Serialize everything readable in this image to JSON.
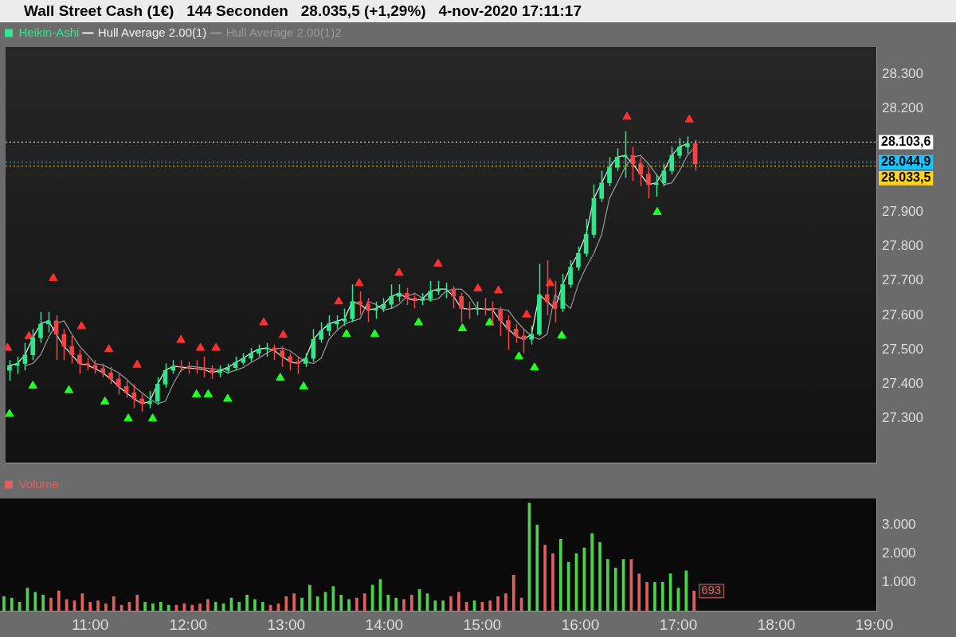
{
  "chart_data": [
    {
      "type": "candlestick",
      "title": "Wall Street Cash (1€)   144 Seconden   28.035,5 (+1,29%)   4-nov-2020 17:11:17",
      "legend": "top left",
      "tick_labels": "y",
      "x": [
        10.12,
        10.2,
        10.28,
        10.36,
        10.44,
        10.52,
        10.6,
        10.68,
        10.76,
        10.84,
        10.92,
        11,
        11.08,
        11.16,
        11.24,
        11.32,
        11.4,
        11.48,
        11.56,
        11.64,
        11.72,
        11.8,
        11.88,
        11.96,
        12.04,
        12.12,
        12.2,
        12.28,
        12.36,
        12.44,
        12.52,
        12.6,
        12.68,
        12.76,
        12.84,
        12.92,
        13,
        13.08,
        13.16,
        13.24,
        13.32,
        13.4,
        13.48,
        13.56,
        13.64,
        13.72,
        13.8,
        13.88,
        13.96,
        14.04,
        14.12,
        14.2,
        14.28,
        14.36,
        14.44,
        14.52,
        14.6,
        14.68,
        14.76,
        14.84,
        14.92,
        15,
        15.08,
        15.16,
        15.24,
        15.32,
        15.4,
        15.48,
        15.56,
        15.64,
        15.72,
        15.8,
        15.88,
        15.96,
        16.04,
        16.12,
        16.2,
        16.28,
        16.36,
        16.44,
        16.52,
        16.6,
        16.68,
        16.76,
        16.84,
        16.92,
        17,
        17.08,
        17.16
      ],
      "xlim": [
        10.08,
        19.02
      ],
      "ylim": [
        27170,
        28380
      ],
      "yticks": [
        {
          "value": 27300,
          "label": "27.300"
        },
        {
          "value": 27400,
          "label": "27.400"
        },
        {
          "value": 27500,
          "label": "27.500"
        },
        {
          "value": 27600,
          "label": "27.600"
        },
        {
          "value": 27700,
          "label": "27.700"
        },
        {
          "value": 27800,
          "label": "27.800"
        },
        {
          "value": 27900,
          "label": "27.900"
        },
        {
          "value": 28200,
          "label": "28.200"
        },
        {
          "value": 28300,
          "label": "28.300"
        }
      ],
      "ref_lines": [
        {
          "axis": "y",
          "value": 28103.6,
          "label": "28.103,6",
          "color": "#ffffff"
        },
        {
          "axis": "y",
          "value": 28044.9,
          "label": "28.044,9",
          "color": "#19c3ff"
        },
        {
          "axis": "y",
          "value": 28033.5,
          "label": "28.033,5",
          "color": "#ffd21e"
        }
      ],
      "series": [
        {
          "type": "candlestick",
          "name": "Heikin-Ashi",
          "color": "#2ee88a",
          "colors": [
            "#2ee88a",
            "#2ee88a",
            "#2ee88a",
            "#2ee88a",
            "#2ee88a",
            "#2ee88a",
            "#f04545",
            "#f04545",
            "#f04545",
            "#f04545",
            "#f04545",
            "#f04545",
            "#f04545",
            "#f04545",
            "#f04545",
            "#f04545",
            "#f04545",
            "#f04545",
            "#2ee88a",
            "#2ee88a",
            "#2ee88a",
            "#2ee88a",
            "#f04545",
            "#f04545",
            "#f04545",
            "#f04545",
            "#f04545",
            "#2ee88a",
            "#2ee88a",
            "#2ee88a",
            "#2ee88a",
            "#2ee88a",
            "#2ee88a",
            "#2ee88a",
            "#f04545",
            "#f04545",
            "#f04545",
            "#f04545",
            "#2ee88a",
            "#2ee88a",
            "#2ee88a",
            "#2ee88a",
            "#2ee88a",
            "#2ee88a",
            "#2ee88a",
            "#f04545",
            "#f04545",
            "#2ee88a",
            "#2ee88a",
            "#2ee88a",
            "#2ee88a",
            "#f04545",
            "#f04545",
            "#2ee88a",
            "#2ee88a",
            "#2ee88a",
            "#2ee88a",
            "#f04545",
            "#f04545",
            "#f04545",
            "#2ee88a",
            "#f04545",
            "#f04545",
            "#f04545",
            "#f04545",
            "#f04545",
            "#f04545",
            "#2ee88a",
            "#2ee88a",
            "#f04545",
            "#f04545",
            "#2ee88a",
            "#2ee88a",
            "#2ee88a",
            "#2ee88a",
            "#2ee88a",
            "#2ee88a",
            "#2ee88a",
            "#2ee88a",
            "#2ee88a",
            "#f04545",
            "#f04545",
            "#f04545",
            "#2ee88a",
            "#2ee88a",
            "#2ee88a",
            "#2ee88a",
            "#2ee88a",
            "#f04545"
          ],
          "ohlc": [
            [
              27440,
              27470,
              27410,
              27454
            ],
            [
              27454,
              27480,
              27430,
              27460
            ],
            [
              27460,
              27520,
              27440,
              27485
            ],
            [
              27485,
              27560,
              27470,
              27535
            ],
            [
              27535,
              27610,
              27520,
              27575
            ],
            [
              27575,
              27610,
              27550,
              27584
            ],
            [
              27584,
              27600,
              27470,
              27545
            ],
            [
              27545,
              27560,
              27470,
              27510
            ],
            [
              27510,
              27540,
              27460,
              27485
            ],
            [
              27485,
              27500,
              27430,
              27460
            ],
            [
              27460,
              27475,
              27440,
              27455
            ],
            [
              27455,
              27470,
              27430,
              27445
            ],
            [
              27445,
              27460,
              27420,
              27433
            ],
            [
              27433,
              27450,
              27400,
              27415
            ],
            [
              27415,
              27430,
              27370,
              27393
            ],
            [
              27393,
              27410,
              27360,
              27375
            ],
            [
              27375,
              27400,
              27330,
              27357
            ],
            [
              27357,
              27370,
              27320,
              27343
            ],
            [
              27343,
              27380,
              27330,
              27350
            ],
            [
              27350,
              27420,
              27340,
              27400
            ],
            [
              27400,
              27460,
              27390,
              27440
            ],
            [
              27440,
              27470,
              27430,
              27452
            ],
            [
              27452,
              27470,
              27435,
              27450
            ],
            [
              27450,
              27465,
              27430,
              27447
            ],
            [
              27447,
              27470,
              27430,
              27445
            ],
            [
              27445,
              27480,
              27420,
              27442
            ],
            [
              27442,
              27455,
              27415,
              27433
            ],
            [
              27433,
              27455,
              27420,
              27440
            ],
            [
              27440,
              27460,
              27430,
              27448
            ],
            [
              27448,
              27480,
              27440,
              27463
            ],
            [
              27463,
              27490,
              27455,
              27475
            ],
            [
              27475,
              27505,
              27465,
              27490
            ],
            [
              27490,
              27515,
              27480,
              27502
            ],
            [
              27502,
              27520,
              27480,
              27505
            ],
            [
              27505,
              27515,
              27470,
              27497
            ],
            [
              27497,
              27510,
              27450,
              27480
            ],
            [
              27480,
              27490,
              27440,
              27465
            ],
            [
              27465,
              27480,
              27430,
              27460
            ],
            [
              27460,
              27490,
              27450,
              27475
            ],
            [
              27475,
              27560,
              27465,
              27530
            ],
            [
              27530,
              27580,
              27520,
              27555
            ],
            [
              27555,
              27600,
              27540,
              27575
            ],
            [
              27575,
              27600,
              27560,
              27583
            ],
            [
              27583,
              27620,
              27570,
              27590
            ],
            [
              27590,
              27690,
              27580,
              27640
            ],
            [
              27640,
              27670,
              27600,
              27632
            ],
            [
              27632,
              27650,
              27580,
              27615
            ],
            [
              27615,
              27640,
              27590,
              27620
            ],
            [
              27620,
              27650,
              27610,
              27632
            ],
            [
              27632,
              27690,
              27620,
              27655
            ],
            [
              27655,
              27690,
              27640,
              27664
            ],
            [
              27664,
              27680,
              27630,
              27650
            ],
            [
              27650,
              27660,
              27620,
              27643
            ],
            [
              27643,
              27665,
              27630,
              27648
            ],
            [
              27648,
              27700,
              27640,
              27670
            ],
            [
              27670,
              27700,
              27660,
              27676
            ],
            [
              27676,
              27695,
              27650,
              27676
            ],
            [
              27676,
              27685,
              27620,
              27655
            ],
            [
              27655,
              27665,
              27580,
              27620
            ],
            [
              27620,
              27640,
              27590,
              27618
            ],
            [
              27618,
              27640,
              27600,
              27620
            ],
            [
              27620,
              27650,
              27600,
              27618
            ],
            [
              27618,
              27640,
              27570,
              27615
            ],
            [
              27615,
              27625,
              27540,
              27585
            ],
            [
              27585,
              27600,
              27500,
              27560
            ],
            [
              27560,
              27575,
              27520,
              27540
            ],
            [
              27540,
              27560,
              27490,
              27530
            ],
            [
              27530,
              27570,
              27515,
              27545
            ],
            [
              27545,
              27750,
              27540,
              27660
            ],
            [
              27660,
              27760,
              27600,
              27640
            ],
            [
              27640,
              27700,
              27580,
              27620
            ],
            [
              27620,
              27720,
              27610,
              27690
            ],
            [
              27690,
              27760,
              27680,
              27740
            ],
            [
              27740,
              27800,
              27730,
              27780
            ],
            [
              27780,
              27880,
              27770,
              27835
            ],
            [
              27835,
              27980,
              27825,
              27940
            ],
            [
              27940,
              28020,
              27930,
              27985
            ],
            [
              27985,
              28060,
              27975,
              28030
            ],
            [
              28030,
              28085,
              28020,
              28060
            ],
            [
              28060,
              28135,
              28000,
              28065
            ],
            [
              28065,
              28090,
              27990,
              28040
            ],
            [
              28040,
              28060,
              27975,
              28010
            ],
            [
              28010,
              28030,
              27940,
              27980
            ],
            [
              27980,
              28010,
              27945,
              27985
            ],
            [
              27985,
              28040,
              27975,
              28020
            ],
            [
              28020,
              28090,
              28010,
              28065
            ],
            [
              28065,
              28115,
              28055,
              28090
            ],
            [
              28090,
              28120,
              28070,
              28099
            ],
            [
              28099,
              28110,
              28020,
              28040
            ]
          ]
        },
        {
          "type": "line",
          "name": "Hull Average 2.00(1)",
          "color": "#f0f0f0",
          "marker": "none",
          "values": [
            27454,
            27460,
            27485,
            27535,
            27575,
            27584,
            27545,
            27510,
            27485,
            27460,
            27455,
            27445,
            27433,
            27415,
            27393,
            27375,
            27357,
            27343,
            27350,
            27400,
            27440,
            27452,
            27450,
            27447,
            27445,
            27442,
            27433,
            27440,
            27448,
            27463,
            27475,
            27490,
            27502,
            27505,
            27497,
            27480,
            27465,
            27460,
            27475,
            27530,
            27555,
            27575,
            27583,
            27590,
            27640,
            27632,
            27615,
            27620,
            27632,
            27655,
            27664,
            27650,
            27643,
            27648,
            27670,
            27676,
            27676,
            27655,
            27620,
            27618,
            27620,
            27618,
            27615,
            27585,
            27560,
            27540,
            27530,
            27545,
            27660,
            27640,
            27620,
            27690,
            27740,
            27780,
            27835,
            27940,
            27985,
            28030,
            28060,
            28065,
            28040,
            28010,
            27980,
            27985,
            28020,
            28065,
            28090,
            28099,
            null
          ]
        },
        {
          "type": "line",
          "name": "Hull Average 2.00(1)2",
          "color": "#9a9a9a",
          "marker": "none",
          "values": [
            null,
            null,
            27454,
            27460,
            27485,
            27535,
            27575,
            27584,
            27545,
            27510,
            27485,
            27460,
            27455,
            27445,
            27433,
            27415,
            27393,
            27375,
            27357,
            27343,
            27350,
            27400,
            27440,
            27452,
            27450,
            27447,
            27445,
            27442,
            27433,
            27440,
            27448,
            27463,
            27475,
            27490,
            27502,
            27505,
            27497,
            27480,
            27465,
            27460,
            27475,
            27530,
            27555,
            27575,
            27583,
            27590,
            27640,
            27632,
            27615,
            27620,
            27632,
            27655,
            27664,
            27650,
            27643,
            27648,
            27670,
            27676,
            27676,
            27655,
            27620,
            27618,
            27620,
            27618,
            27615,
            27585,
            27560,
            27540,
            27530,
            27545,
            27660,
            27640,
            27620,
            27690,
            27740,
            27780,
            27835,
            27940,
            27985,
            28030,
            28060,
            28065,
            28040,
            28010,
            27980,
            27985,
            28020,
            28065,
            28090
          ]
        },
        {
          "type": "scatter",
          "color": "#22ff22",
          "marker": "triangle",
          "x": [
            10.12,
            10.36,
            10.73,
            11.1,
            11.34,
            11.59,
            12.04,
            12.16,
            12.36,
            12.9,
            13.14,
            13.58,
            13.87,
            14.32,
            14.77,
            15.05,
            15.35,
            15.51,
            15.79,
            16.77
          ],
          "values": [
            27313,
            27395,
            27382,
            27349,
            27300,
            27300,
            27370,
            27370,
            27357,
            27418,
            27393,
            27545,
            27545,
            27579,
            27562,
            27579,
            27480,
            27448,
            27541,
            27900
          ]
        },
        {
          "type": "scatter",
          "color": "#ff3030",
          "marker": "triangle",
          "x": [
            10.1,
            10.32,
            10.57,
            10.86,
            11.14,
            11.43,
            11.88,
            12.08,
            12.24,
            12.73,
            12.93,
            13.5,
            13.71,
            14.12,
            14.52,
            14.93,
            15.14,
            15.43,
            15.67,
            16.46,
            17.1
          ],
          "values": [
            27505,
            27539,
            27708,
            27568,
            27501,
            27456,
            27528,
            27505,
            27505,
            27579,
            27543,
            27640,
            27693,
            27723,
            27750,
            27678,
            27672,
            27602,
            27693,
            28177,
            28169
          ]
        }
      ]
    },
    {
      "type": "bar",
      "legend": "top left",
      "x": [
        10.12,
        10.2,
        10.28,
        10.36,
        10.44,
        10.52,
        10.6,
        10.68,
        10.76,
        10.84,
        10.92,
        11,
        11.08,
        11.16,
        11.24,
        11.32,
        11.4,
        11.48,
        11.56,
        11.64,
        11.72,
        11.8,
        11.88,
        11.96,
        12.04,
        12.12,
        12.2,
        12.28,
        12.36,
        12.44,
        12.52,
        12.6,
        12.68,
        12.76,
        12.84,
        12.92,
        13,
        13.08,
        13.16,
        13.24,
        13.32,
        13.4,
        13.48,
        13.56,
        13.64,
        13.72,
        13.8,
        13.88,
        13.96,
        14.04,
        14.12,
        14.2,
        14.28,
        14.36,
        14.44,
        14.52,
        14.6,
        14.68,
        14.76,
        14.84,
        14.92,
        15,
        15.08,
        15.16,
        15.24,
        15.32,
        15.4,
        15.48,
        15.56,
        15.64,
        15.72,
        15.8,
        15.88,
        15.96,
        16.04,
        16.12,
        16.2,
        16.28,
        16.36,
        16.44,
        16.52,
        16.6,
        16.68,
        16.76,
        16.84,
        16.92,
        17,
        17.08,
        17.16
      ],
      "xlim": [
        10.08,
        19.02
      ],
      "xticks": [
        {
          "value": 11,
          "label": "11:00"
        },
        {
          "value": 12,
          "label": "12:00"
        },
        {
          "value": 13,
          "label": "13:00"
        },
        {
          "value": 14,
          "label": "14:00"
        },
        {
          "value": 15,
          "label": "15:00"
        },
        {
          "value": 16,
          "label": "16:00"
        },
        {
          "value": 17,
          "label": "17:00"
        },
        {
          "value": 18,
          "label": "18:00"
        },
        {
          "value": 19,
          "label": "19:00"
        }
      ],
      "ylim": [
        0,
        3930
      ],
      "yticks": [
        {
          "value": 1000,
          "label": "1.000"
        },
        {
          "value": 2000,
          "label": "2.000"
        },
        {
          "value": 3000,
          "label": "3.000"
        }
      ],
      "annotations": [
        {
          "text": "693",
          "x": 17.16,
          "y": 693
        }
      ],
      "series": [
        {
          "name": "Volume",
          "color": "#e06060",
          "colors": [
            "#4cd44c",
            "#4cd44c",
            "#4cd44c",
            "#4cd44c",
            "#4cd44c",
            "#4cd44c",
            "#e06060",
            "#e06060",
            "#e06060",
            "#e06060",
            "#e06060",
            "#e06060",
            "#e06060",
            "#e06060",
            "#e06060",
            "#e06060",
            "#e06060",
            "#e06060",
            "#4cd44c",
            "#4cd44c",
            "#4cd44c",
            "#4cd44c",
            "#e06060",
            "#e06060",
            "#e06060",
            "#e06060",
            "#e06060",
            "#4cd44c",
            "#4cd44c",
            "#4cd44c",
            "#4cd44c",
            "#4cd44c",
            "#4cd44c",
            "#4cd44c",
            "#e06060",
            "#e06060",
            "#e06060",
            "#e06060",
            "#4cd44c",
            "#4cd44c",
            "#4cd44c",
            "#4cd44c",
            "#4cd44c",
            "#4cd44c",
            "#4cd44c",
            "#e06060",
            "#e06060",
            "#4cd44c",
            "#4cd44c",
            "#4cd44c",
            "#4cd44c",
            "#e06060",
            "#e06060",
            "#4cd44c",
            "#4cd44c",
            "#4cd44c",
            "#4cd44c",
            "#e06060",
            "#e06060",
            "#e06060",
            "#4cd44c",
            "#e06060",
            "#e06060",
            "#e06060",
            "#e06060",
            "#e06060",
            "#e06060",
            "#4cd44c",
            "#4cd44c",
            "#e06060",
            "#e06060",
            "#4cd44c",
            "#4cd44c",
            "#4cd44c",
            "#4cd44c",
            "#4cd44c",
            "#4cd44c",
            "#4cd44c",
            "#4cd44c",
            "#4cd44c",
            "#e06060",
            "#e06060",
            "#e06060",
            "#4cd44c",
            "#4cd44c",
            "#4cd44c",
            "#4cd44c",
            "#4cd44c",
            "#e06060"
          ],
          "values": [
            500,
            450,
            300,
            800,
            650,
            550,
            450,
            700,
            400,
            350,
            600,
            300,
            350,
            250,
            500,
            200,
            300,
            550,
            300,
            250,
            300,
            200,
            200,
            250,
            200,
            250,
            400,
            300,
            250,
            450,
            300,
            550,
            400,
            300,
            200,
            250,
            500,
            600,
            450,
            900,
            500,
            650,
            850,
            550,
            400,
            450,
            600,
            900,
            1100,
            550,
            450,
            400,
            550,
            750,
            600,
            350,
            350,
            500,
            650,
            300,
            350,
            300,
            350,
            500,
            600,
            1250,
            450,
            3770,
            3000,
            2300,
            2000,
            2500,
            1700,
            2000,
            2200,
            2700,
            2400,
            1800,
            1500,
            1800,
            1800,
            1300,
            1000,
            1000,
            1000,
            1300,
            800,
            1400,
            693
          ]
        }
      ]
    }
  ]
}
